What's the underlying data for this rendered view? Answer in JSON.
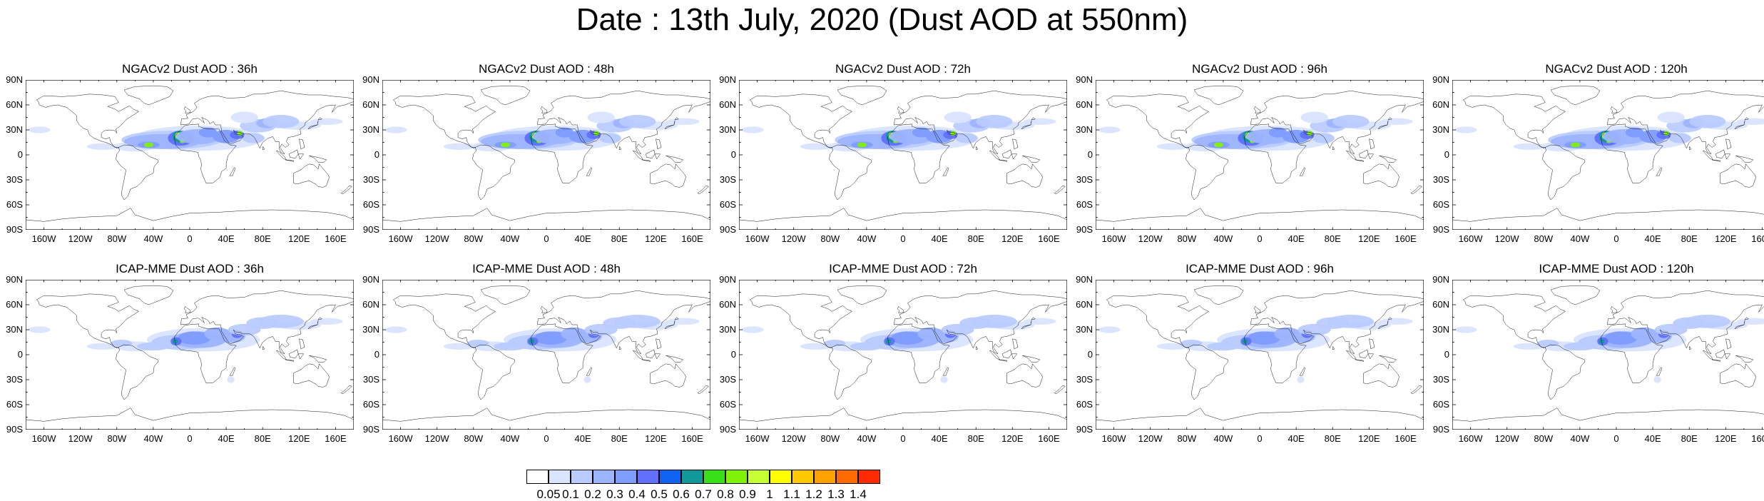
{
  "figure_title": "Date : 13th July, 2020 (Dust AOD at 550nm)",
  "panel_titles": [
    "NGACv2 Dust AOD : 36h",
    "NGACv2 Dust AOD : 48h",
    "NGACv2 Dust AOD : 72h",
    "NGACv2 Dust AOD : 96h",
    "NGACv2 Dust AOD : 120h",
    "ICAP-MME Dust AOD : 36h",
    "ICAP-MME Dust AOD : 48h",
    "ICAP-MME Dust AOD : 72h",
    "ICAP-MME Dust AOD : 96h",
    "ICAP-MME Dust AOD : 120h"
  ],
  "lat_labels": [
    "90N",
    "60N",
    "30N",
    "0",
    "30S",
    "60S",
    "90S"
  ],
  "lon_labels": [
    "160W",
    "120W",
    "80W",
    "40W",
    "0",
    "40E",
    "80E",
    "120E",
    "160E"
  ],
  "colorbar": {
    "levels": [
      "0.05",
      "0.1",
      "0.2",
      "0.3",
      "0.4",
      "0.5",
      "0.6",
      "0.7",
      "0.8",
      "0.9",
      "1",
      "1.1",
      "1.2",
      "1.3",
      "1.4"
    ],
    "colors": [
      "#ffffff",
      "#d9e4ff",
      "#b9cbff",
      "#9db4ff",
      "#7f9cff",
      "#6170ff",
      "#0f62f2",
      "#119898",
      "#38e018",
      "#7ff208",
      "#c6ff33",
      "#ffff00",
      "#ffc800",
      "#ffa100",
      "#ff6a00",
      "#ff2b00"
    ]
  }
}
